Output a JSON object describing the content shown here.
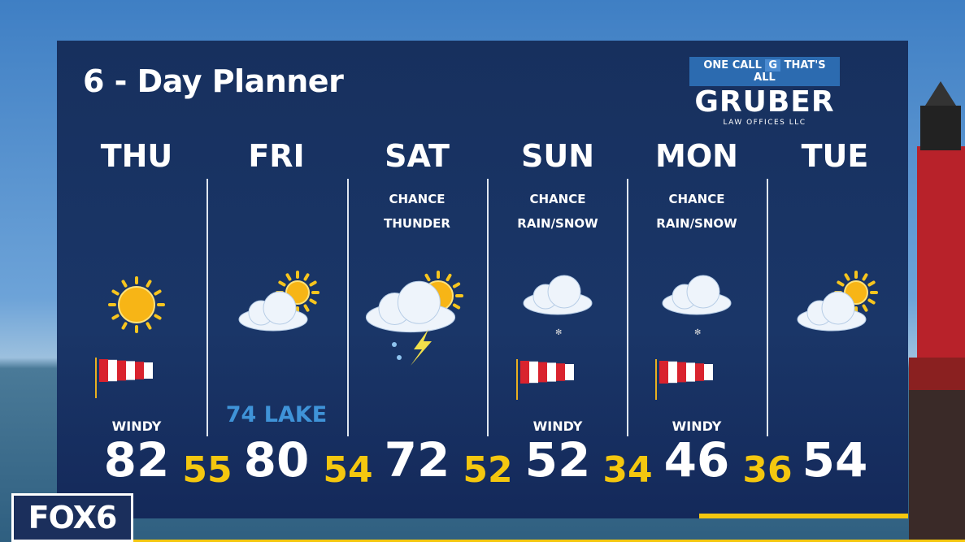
{
  "title": "6 - Day Planner",
  "sponsor": {
    "tagline_left": "ONE CALL",
    "tagline_right": "THAT'S ALL",
    "badge": "G",
    "name": "GRUBER",
    "sub": "LAW OFFICES LLC"
  },
  "station": "FOX6",
  "days": [
    {
      "name": "THU",
      "cond1": "",
      "cond2": "",
      "icon": "sunny",
      "wind": "WINDY",
      "lake": "",
      "high": "82"
    },
    {
      "name": "FRI",
      "cond1": "",
      "cond2": "",
      "icon": "partly-cloudy",
      "wind": "",
      "lake": "74 LAKE",
      "high": "80"
    },
    {
      "name": "SAT",
      "cond1": "CHANCE",
      "cond2": "THUNDER",
      "icon": "thunderstorm",
      "wind": "",
      "lake": "",
      "high": "72"
    },
    {
      "name": "SUN",
      "cond1": "CHANCE",
      "cond2": "RAIN/SNOW",
      "icon": "cloud-snow",
      "wind": "WINDY",
      "lake": "",
      "high": "52"
    },
    {
      "name": "MON",
      "cond1": "CHANCE",
      "cond2": "RAIN/SNOW",
      "icon": "cloud-snow",
      "wind": "WINDY",
      "lake": "",
      "high": "46"
    },
    {
      "name": "TUE",
      "cond1": "",
      "cond2": "",
      "icon": "partly-cloudy",
      "wind": "",
      "lake": "",
      "high": "54"
    }
  ],
  "lows": [
    "55",
    "54",
    "52",
    "34",
    "36"
  ],
  "colors": {
    "panel": "#1a3668",
    "low": "#f4c70f",
    "lake": "#3f93d8"
  }
}
